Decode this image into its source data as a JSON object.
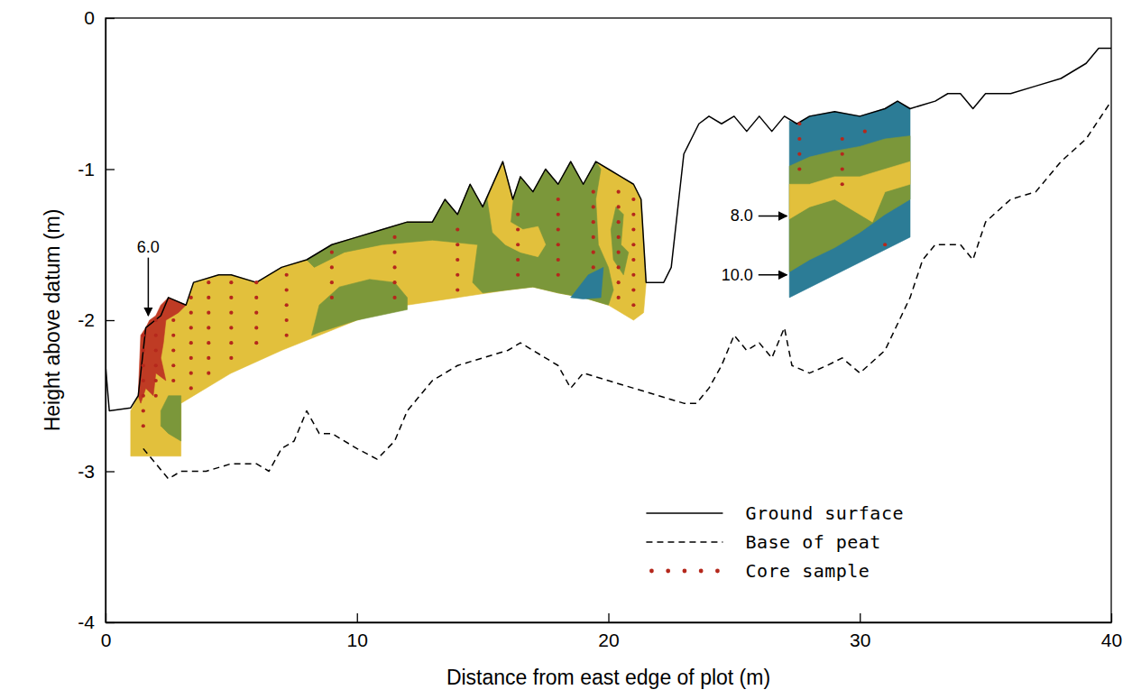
{
  "chart_data": {
    "type": "line",
    "xlabel": "Distance from east edge of plot (m)",
    "ylabel": "Height above datum (m)",
    "xlim": [
      0,
      40
    ],
    "ylim": [
      -4,
      0
    ],
    "xticks": [
      0,
      10,
      20,
      30,
      40
    ],
    "yticks": [
      -4,
      -3,
      -2,
      -1,
      0
    ],
    "legend": "lower right",
    "series": [
      {
        "type": "area",
        "color": "#e2c03c",
        "x": [
          1.3,
          1.6,
          2.2,
          2.5,
          3.2,
          3.5,
          4.5,
          5,
          6,
          7,
          8,
          9,
          10,
          11,
          12,
          13,
          13.5,
          14,
          14.5,
          15,
          15.8,
          16.2,
          16.5,
          17,
          17.5,
          18,
          18.5,
          19,
          19.5,
          20,
          20.5,
          21,
          21.3,
          21.5,
          21.4,
          21,
          20,
          19,
          18,
          17,
          16,
          14,
          12,
          10,
          8.5,
          7,
          5,
          3,
          3,
          1.0,
          1.0
        ],
        "values": [
          -2.5,
          -2.05,
          -1.97,
          -1.85,
          -1.9,
          -1.75,
          -1.7,
          -1.7,
          -1.75,
          -1.65,
          -1.6,
          -1.5,
          -1.45,
          -1.4,
          -1.35,
          -1.35,
          -1.2,
          -1.3,
          -1.1,
          -1.25,
          -0.95,
          -1.2,
          -1.05,
          -1.15,
          -1.0,
          -1.1,
          -0.95,
          -1.1,
          -0.95,
          -1.0,
          -1.05,
          -1.1,
          -1.2,
          -1.75,
          -1.95,
          -2.0,
          -1.9,
          -1.85,
          -1.82,
          -1.78,
          -1.8,
          -1.85,
          -1.9,
          -2.0,
          -2.1,
          -2.2,
          -2.35,
          -2.55,
          -2.9,
          -2.9,
          -2.6
        ]
      },
      {
        "type": "area",
        "color": "#7b973a",
        "x": [
          8,
          9,
          10,
          11,
          12,
          13,
          13.5,
          14,
          14.5,
          15,
          15.5,
          16.2,
          16.5,
          17,
          17.5,
          18,
          18.5,
          19,
          19.5,
          19.7,
          19.5,
          19.6,
          20.0,
          20.2,
          20.0,
          19,
          18,
          17,
          16,
          15,
          14.6,
          14.8,
          13,
          11,
          9.5,
          8.3
        ],
        "values": [
          -1.6,
          -1.5,
          -1.45,
          -1.4,
          -1.35,
          -1.35,
          -1.2,
          -1.3,
          -1.1,
          -1.25,
          -1.1,
          -1.2,
          -1.05,
          -1.15,
          -1.0,
          -1.1,
          -0.95,
          -1.1,
          -0.95,
          -1.0,
          -1.2,
          -1.5,
          -1.65,
          -1.8,
          -1.9,
          -1.85,
          -1.82,
          -1.78,
          -1.8,
          -1.82,
          -1.75,
          -1.5,
          -1.47,
          -1.5,
          -1.55,
          -1.65
        ]
      },
      {
        "type": "area",
        "color": "#e2c03c",
        "x": [
          15.2,
          15.8,
          16.2,
          16.1,
          16.6,
          17.2,
          17.5,
          17.2,
          16.5,
          15.9,
          15.4
        ],
        "values": [
          -1.2,
          -0.95,
          -1.2,
          -1.35,
          -1.4,
          -1.38,
          -1.5,
          -1.58,
          -1.55,
          -1.5,
          -1.42
        ]
      },
      {
        "type": "area",
        "color": "#7b973a",
        "x": [
          20.3,
          20.6,
          20.5,
          20.8,
          20.6,
          20.2,
          20.1
        ],
        "values": [
          -1.25,
          -1.3,
          -1.5,
          -1.55,
          -1.7,
          -1.6,
          -1.4
        ]
      },
      {
        "type": "area",
        "color": "#2c7c96",
        "x": [
          18.5,
          19.2,
          19.8,
          19.7,
          19.0
        ],
        "values": [
          -1.85,
          -1.7,
          -1.65,
          -1.85,
          -1.86
        ]
      },
      {
        "type": "area",
        "color": "#7b973a",
        "x": [
          8.2,
          8.5,
          9.3,
          10.5,
          11.5,
          12,
          12,
          10,
          8.5
        ],
        "values": [
          -2.1,
          -1.9,
          -1.78,
          -1.73,
          -1.75,
          -1.85,
          -1.93,
          -2.0,
          -2.08
        ]
      },
      {
        "type": "area",
        "color": "#7b973a",
        "x": [
          2.2,
          2.5,
          3.0,
          3.0,
          2.5,
          2.2
        ],
        "values": [
          -2.6,
          -2.5,
          -2.5,
          -2.8,
          -2.75,
          -2.7
        ]
      },
      {
        "type": "area",
        "color": "#bf3b24",
        "x": [
          1.3,
          1.4,
          1.6,
          1.75,
          2.0,
          2.2,
          2.5,
          3.2,
          2.9,
          2.4,
          2.3,
          2.2,
          2.4,
          2.0,
          1.9,
          1.6,
          1.4
        ],
        "values": [
          -2.5,
          -2.1,
          -2.05,
          -2.0,
          -1.97,
          -1.9,
          -1.85,
          -1.9,
          -1.95,
          -2.0,
          -2.15,
          -2.25,
          -2.4,
          -2.35,
          -2.5,
          -2.45,
          -2.55
        ]
      },
      {
        "type": "area",
        "color": "#2c7c96",
        "x": [
          27.2,
          27.5,
          28,
          29,
          30,
          31,
          31.5,
          32,
          32,
          27.2
        ],
        "values": [
          -0.68,
          -0.7,
          -0.65,
          -0.62,
          -0.65,
          -0.6,
          -0.55,
          -0.6,
          -1.45,
          -1.85
        ]
      },
      {
        "type": "area",
        "color": "#7b973a",
        "x": [
          27.2,
          28,
          29,
          30,
          31,
          32,
          32,
          31,
          30,
          29,
          28,
          27.2
        ],
        "values": [
          -0.98,
          -0.92,
          -0.88,
          -0.85,
          -0.8,
          -0.78,
          -1.2,
          -1.3,
          -1.42,
          -1.52,
          -1.6,
          -1.68
        ]
      },
      {
        "type": "area",
        "color": "#e2c03c",
        "x": [
          27.2,
          28,
          29,
          30,
          31,
          32,
          32,
          31,
          30.5,
          30,
          29.5,
          29,
          28,
          27.2
        ],
        "values": [
          -1.1,
          -1.1,
          -1.05,
          -1.05,
          -1.0,
          -0.95,
          -1.1,
          -1.15,
          -1.35,
          -1.3,
          -1.25,
          -1.2,
          -1.25,
          -1.33
        ]
      },
      {
        "name": "Ground surface",
        "type": "line",
        "line_style": "solid",
        "color": "#000000",
        "x": [
          0,
          0.15,
          1.0,
          1.3,
          1.6,
          2.2,
          2.5,
          3.2,
          3.5,
          4.5,
          5,
          6,
          7,
          8,
          9,
          10,
          11,
          12,
          13,
          13.5,
          14,
          14.5,
          15,
          15.8,
          16.2,
          16.5,
          17,
          17.5,
          18,
          18.5,
          19,
          19.5,
          20,
          20.5,
          21,
          21.3,
          21.5,
          22.2,
          22.5,
          22.8,
          23,
          23.3,
          23.6,
          24,
          24.5,
          25,
          25.5,
          26,
          26.5,
          27,
          27.5,
          28,
          29,
          30,
          31,
          31.5,
          32,
          33,
          33.5,
          34,
          34.5,
          35,
          36,
          37,
          38,
          39,
          39.5,
          40
        ],
        "values": [
          -2.3,
          -2.6,
          -2.58,
          -2.5,
          -2.05,
          -1.97,
          -1.85,
          -1.9,
          -1.75,
          -1.7,
          -1.7,
          -1.75,
          -1.65,
          -1.6,
          -1.5,
          -1.45,
          -1.4,
          -1.35,
          -1.35,
          -1.2,
          -1.3,
          -1.1,
          -1.25,
          -0.95,
          -1.2,
          -1.05,
          -1.15,
          -1.0,
          -1.1,
          -0.95,
          -1.1,
          -0.95,
          -1.0,
          -1.05,
          -1.1,
          -1.2,
          -1.75,
          -1.75,
          -1.65,
          -1.2,
          -0.9,
          -0.8,
          -0.7,
          -0.65,
          -0.7,
          -0.65,
          -0.75,
          -0.65,
          -0.75,
          -0.65,
          -0.7,
          -0.65,
          -0.62,
          -0.65,
          -0.6,
          -0.55,
          -0.6,
          -0.55,
          -0.5,
          -0.5,
          -0.6,
          -0.5,
          -0.5,
          -0.45,
          -0.4,
          -0.3,
          -0.2,
          -0.2
        ]
      },
      {
        "name": "Base of peat",
        "type": "line",
        "line_style": "dashed",
        "color": "#000000",
        "x": [
          1.5,
          2,
          2.5,
          3,
          4,
          5,
          6,
          6.5,
          7,
          7.5,
          8,
          8.5,
          9,
          10,
          10.8,
          11.5,
          12,
          13,
          14,
          15,
          16,
          16.5,
          17,
          18,
          18.5,
          19,
          20,
          21,
          22,
          23,
          23.5,
          24,
          24.5,
          25,
          25.5,
          26,
          26.5,
          27,
          27.3,
          28,
          28.7,
          29.3,
          30,
          31,
          32,
          32.5,
          33,
          34,
          34.5,
          35,
          36,
          37,
          38,
          39,
          40
        ],
        "values": [
          -2.85,
          -2.95,
          -3.05,
          -3.0,
          -3.0,
          -2.95,
          -2.95,
          -3.0,
          -2.85,
          -2.8,
          -2.6,
          -2.75,
          -2.75,
          -2.85,
          -2.92,
          -2.8,
          -2.6,
          -2.4,
          -2.3,
          -2.25,
          -2.2,
          -2.15,
          -2.2,
          -2.3,
          -2.45,
          -2.35,
          -2.4,
          -2.45,
          -2.5,
          -2.55,
          -2.55,
          -2.45,
          -2.3,
          -2.1,
          -2.2,
          -2.15,
          -2.25,
          -2.05,
          -2.3,
          -2.35,
          -2.3,
          -2.25,
          -2.35,
          -2.2,
          -1.85,
          -1.6,
          -1.5,
          -1.5,
          -1.6,
          -1.35,
          -1.2,
          -1.15,
          -0.95,
          -0.8,
          -0.55
        ]
      },
      {
        "name": "Core sample",
        "type": "scatter",
        "marker": "dot",
        "color": "#b5281c",
        "x": [
          1.5,
          1.5,
          1.5,
          1.5,
          1.5,
          1.5,
          1.5,
          2.0,
          2.0,
          2.0,
          2.0,
          2.0,
          2.0,
          2.7,
          2.7,
          2.7,
          2.7,
          2.7,
          3.4,
          3.4,
          3.4,
          3.4,
          3.4,
          3.4,
          3.4,
          4.1,
          4.1,
          4.1,
          4.1,
          4.1,
          4.1,
          4.1,
          5.0,
          5.0,
          5.0,
          5.0,
          5.0,
          5.0,
          6.0,
          6.0,
          6.0,
          6.0,
          6.0,
          7.2,
          7.2,
          7.2,
          7.2,
          7.2,
          9.0,
          9.0,
          9.0,
          9.0,
          11.5,
          11.5,
          11.5,
          11.5,
          11.5,
          14.0,
          14.0,
          14.0,
          14.0,
          14.0,
          16.4,
          16.4,
          16.4,
          16.4,
          16.4,
          18.0,
          18.0,
          18.0,
          18.0,
          18.0,
          18.0,
          19.4,
          19.4,
          19.4,
          19.4,
          19.4,
          19.4,
          20.4,
          20.4,
          20.4,
          20.4,
          20.4,
          20.4,
          20.4,
          20.4,
          21.0,
          21.0,
          21.0,
          21.0,
          21.0,
          21.0,
          21.0,
          21.0,
          27.6,
          27.6,
          27.6,
          27.6,
          29.3,
          29.3,
          29.3,
          29.3,
          30.2,
          31.0
        ],
        "values": [
          -2.1,
          -2.2,
          -2.3,
          -2.4,
          -2.5,
          -2.6,
          -2.7,
          -2.0,
          -2.1,
          -2.2,
          -2.3,
          -2.4,
          -2.5,
          -2.0,
          -2.1,
          -2.2,
          -2.3,
          -2.4,
          -1.85,
          -1.95,
          -2.05,
          -2.15,
          -2.25,
          -2.35,
          -2.45,
          -1.75,
          -1.85,
          -1.95,
          -2.05,
          -2.15,
          -2.25,
          -2.35,
          -1.75,
          -1.85,
          -1.95,
          -2.05,
          -2.15,
          -2.25,
          -1.75,
          -1.85,
          -1.95,
          -2.05,
          -2.15,
          -1.7,
          -1.8,
          -1.9,
          -2.0,
          -2.1,
          -1.55,
          -1.65,
          -1.75,
          -1.85,
          -1.45,
          -1.55,
          -1.65,
          -1.75,
          -1.85,
          -1.4,
          -1.5,
          -1.6,
          -1.7,
          -1.8,
          -1.3,
          -1.4,
          -1.5,
          -1.6,
          -1.7,
          -1.2,
          -1.3,
          -1.4,
          -1.5,
          -1.6,
          -1.7,
          -1.15,
          -1.25,
          -1.35,
          -1.45,
          -1.55,
          -1.65,
          -1.15,
          -1.25,
          -1.35,
          -1.45,
          -1.55,
          -1.65,
          -1.75,
          -1.85,
          -1.2,
          -1.3,
          -1.4,
          -1.5,
          -1.6,
          -1.7,
          -1.8,
          -1.9,
          -0.7,
          -0.8,
          -0.9,
          -1.0,
          -0.8,
          -0.9,
          -1.0,
          -1.1,
          -0.75,
          -1.5
        ]
      }
    ],
    "annotations": [
      {
        "text": "6.0",
        "x": 1.7,
        "y": -1.55,
        "arrow_x": 1.7,
        "arrow_y": -1.97
      },
      {
        "text": "8.0",
        "x": 25.75,
        "y": -1.31,
        "arrow_x": 27.1,
        "arrow_y": -1.31
      },
      {
        "text": "10.0",
        "x": 25.75,
        "y": -1.7,
        "arrow_x": 27.1,
        "arrow_y": -1.7
      }
    ]
  }
}
